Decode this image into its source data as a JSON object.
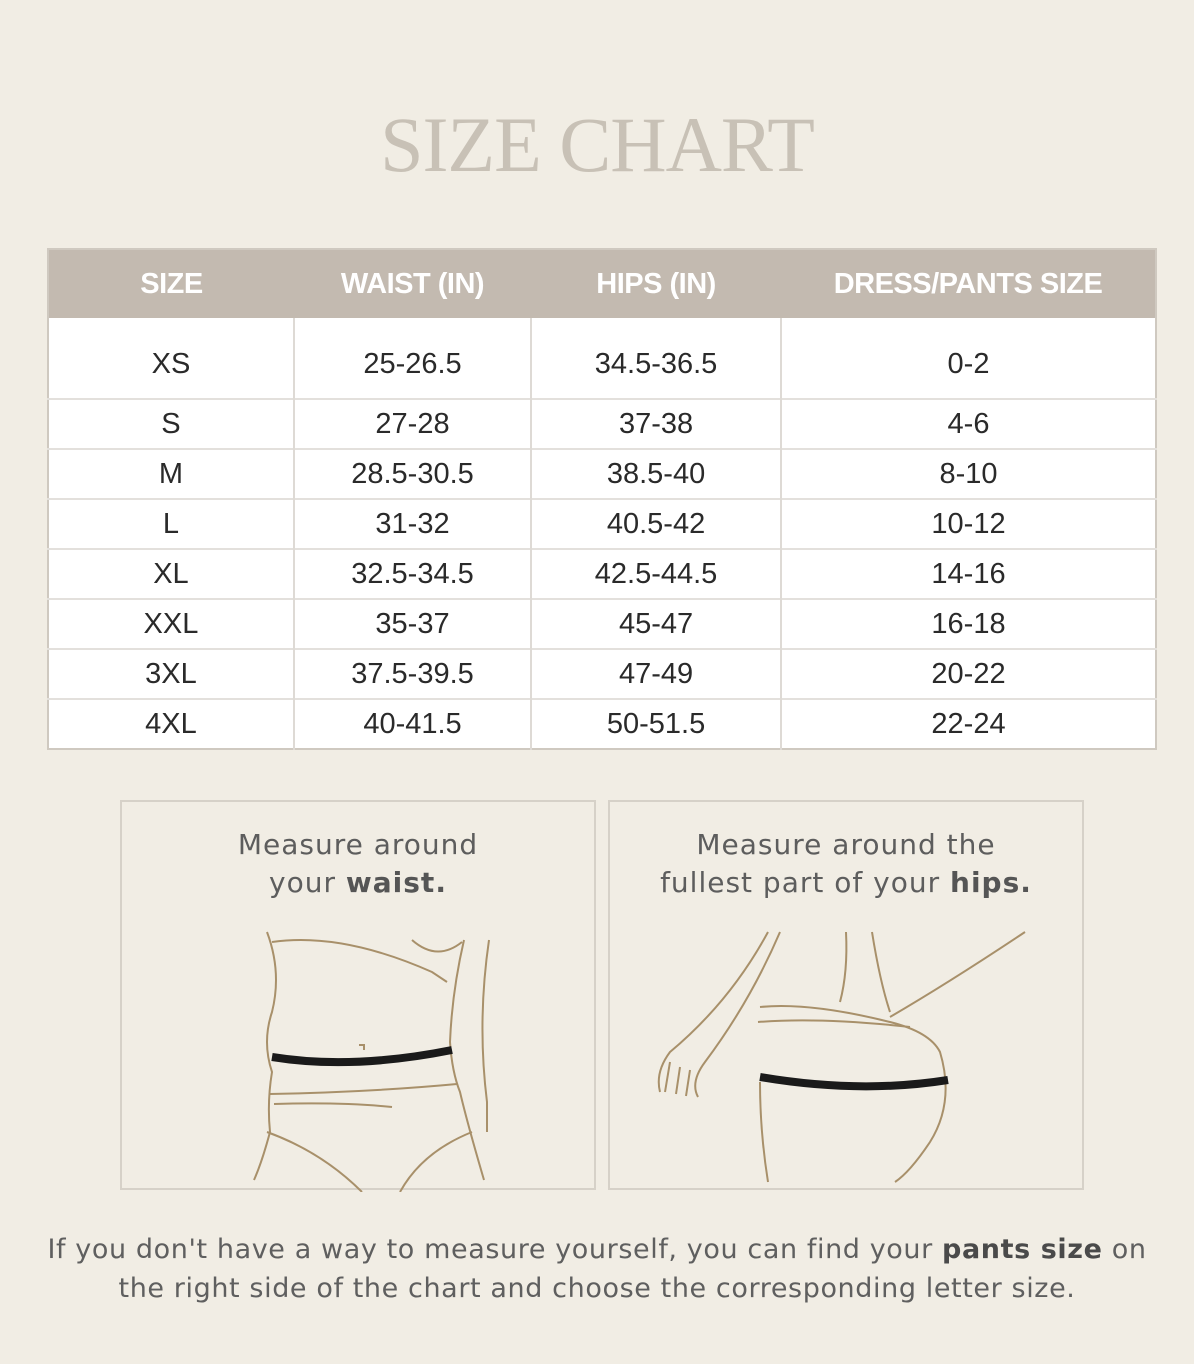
{
  "title": "SIZE CHART",
  "table": {
    "headers": [
      "SIZE",
      "WAIST (IN)",
      "HIPS (IN)",
      "DRESS/PANTS SIZE"
    ],
    "rows": [
      [
        "XS",
        "25-26.5",
        "34.5-36.5",
        "0-2"
      ],
      [
        "S",
        "27-28",
        "37-38",
        "4-6"
      ],
      [
        "M",
        "28.5-30.5",
        "38.5-40",
        "8-10"
      ],
      [
        "L",
        "31-32",
        "40.5-42",
        "10-12"
      ],
      [
        "XL",
        "32.5-34.5",
        "42.5-44.5",
        "14-16"
      ],
      [
        "XXL",
        "35-37",
        "45-47",
        "16-18"
      ],
      [
        "3XL",
        "37.5-39.5",
        "47-49",
        "20-22"
      ],
      [
        "4XL",
        "40-41.5",
        "50-51.5",
        "22-24"
      ]
    ]
  },
  "waist_panel": {
    "line1": "Measure around",
    "line2_pre": "your ",
    "line2_bold": "waist."
  },
  "hips_panel": {
    "line1": "Measure around the",
    "line2_pre": "fullest part of your ",
    "line2_bold": "hips."
  },
  "footer": {
    "pre": "If you don't have a way to measure yourself, you can find your ",
    "bold": "pants size",
    "post1": " on",
    "line2": "the right side of the chart and choose the corresponding letter size."
  },
  "colors": {
    "background": "#f1ede4",
    "header": "#c3bab0",
    "title": "#c8c1b6",
    "outline": "#a8906a"
  }
}
